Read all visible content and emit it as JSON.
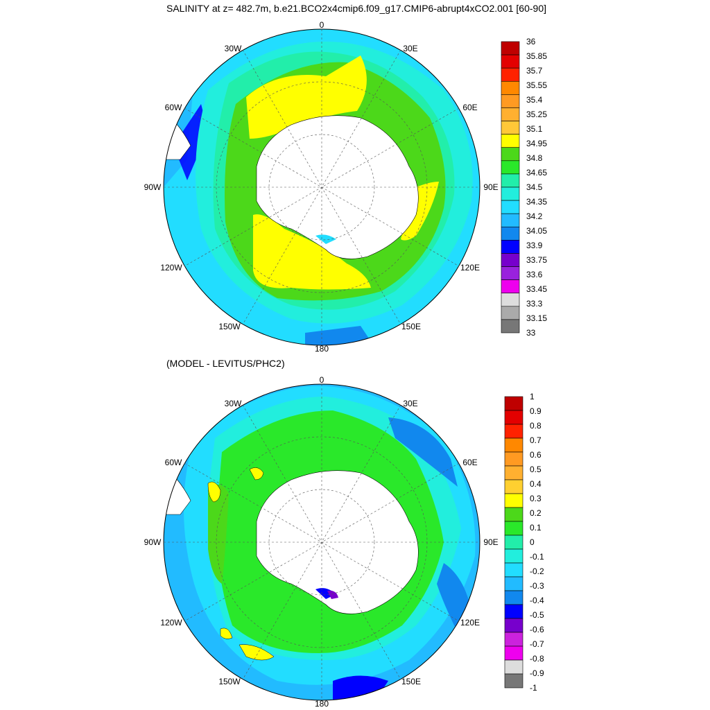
{
  "titles": {
    "top": "SALINITY at z= 482.7m, b.e21.BCO2x4cmip6.f09_g17.CMIP6-abrupt4xCO2.001 [60-90]",
    "bottom": "(MODEL - LEVITUS/PHC2)"
  },
  "longitude_labels": [
    "0",
    "30E",
    "60E",
    "90E",
    "120E",
    "150E",
    "180",
    "150W",
    "120W",
    "90W",
    "60W",
    "30W"
  ],
  "colorbar_top": {
    "labels": [
      "36",
      "35.85",
      "35.7",
      "35.55",
      "35.4",
      "35.25",
      "35.1",
      "34.95",
      "34.8",
      "34.65",
      "34.5",
      "34.35",
      "34.2",
      "34.05",
      "33.9",
      "33.75",
      "33.6",
      "33.45",
      "33.3",
      "33.15",
      "33"
    ],
    "colors": [
      "#bf0000",
      "#e30000",
      "#ff2200",
      "#ff8800",
      "#ff9a22",
      "#ffb030",
      "#ffc838",
      "#ffff00",
      "#4cd81a",
      "#2ae82a",
      "#22eeaa",
      "#22eedd",
      "#22ddff",
      "#22bbff",
      "#1188ee",
      "#0000ff",
      "#7700cc",
      "#9922dd",
      "#ee00ee",
      "#dddddd",
      "#aaaaaa",
      "#777777"
    ]
  },
  "colorbar_bottom": {
    "labels": [
      "1",
      "0.9",
      "0.8",
      "0.7",
      "0.6",
      "0.5",
      "0.4",
      "0.3",
      "0.2",
      "0.1",
      "0",
      "-0.1",
      "-0.2",
      "-0.3",
      "-0.4",
      "-0.5",
      "-0.6",
      "-0.7",
      "-0.8",
      "-0.9",
      "-1"
    ],
    "colors": [
      "#bf0000",
      "#e30000",
      "#ff2200",
      "#ff8800",
      "#ff9a22",
      "#ffb030",
      "#ffd030",
      "#ffff00",
      "#4cd81a",
      "#2ae82a",
      "#22eeaa",
      "#22eedd",
      "#22ddff",
      "#22bbff",
      "#1188ee",
      "#0000ff",
      "#7700cc",
      "#cc22dd",
      "#ee00ee",
      "#dddddd",
      "#777777"
    ]
  }
}
